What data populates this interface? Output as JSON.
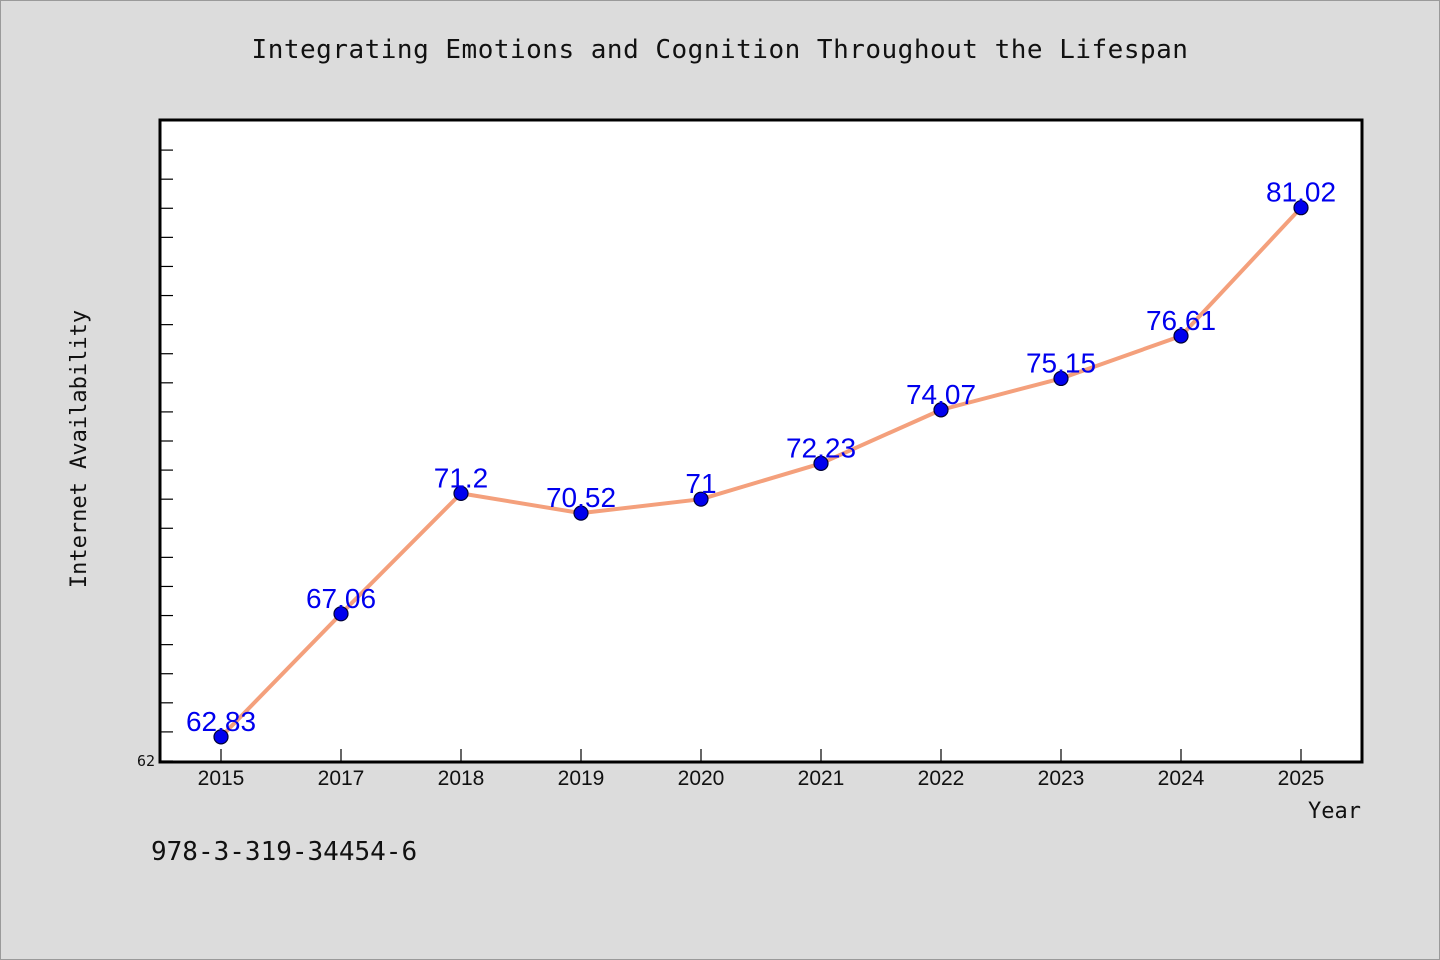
{
  "colors": {
    "background": "#dcdcdc",
    "plot_background": "#ffffff",
    "line": "#f4a07c",
    "marker": "#0000ee",
    "data_label": "#0000ee",
    "text": "#111111"
  },
  "footer": {
    "code": "978-3-319-34454-6"
  },
  "chart_data": {
    "type": "line",
    "title": "Integrating Emotions and Cognition Throughout the Lifespan",
    "xlabel": "Year",
    "ylabel": "Internet Availability",
    "categories": [
      "2015",
      "2017",
      "2018",
      "2019",
      "2020",
      "2021",
      "2022",
      "2023",
      "2024",
      "2025"
    ],
    "series": [
      {
        "values": [
          62.83,
          67.06,
          71.2,
          70.52,
          71,
          72.23,
          74.07,
          75.15,
          76.61,
          81.02
        ],
        "labels": [
          "62.83",
          "67.06",
          "71.2",
          "70.52",
          "71",
          "72.23",
          "74.07",
          "75.15",
          "76.61",
          "81.02"
        ]
      }
    ],
    "ylim": [
      62,
      84
    ],
    "y_tick_labels": [
      "62"
    ],
    "y_minor_tick_step": 1,
    "grid": false,
    "legend": "none"
  }
}
